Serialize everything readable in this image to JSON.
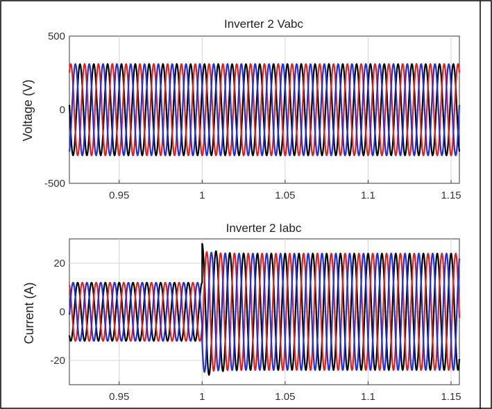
{
  "chart_data": [
    {
      "type": "line",
      "title": "Inverter 2 Vabc",
      "xlabel": "",
      "ylabel": "Voltage (V)",
      "xlim": [
        0.92,
        1.155
      ],
      "ylim": [
        -500,
        500
      ],
      "xticks": [
        0.95,
        1,
        1.05,
        1.1,
        1.15
      ],
      "xtick_labels": [
        "0.95",
        "1",
        "1.05",
        "1.1",
        "1.15"
      ],
      "yticks": [
        -500,
        0,
        500
      ],
      "ytick_labels": [
        "-500",
        "0",
        "500"
      ],
      "grid": true,
      "frequency_hz": 120,
      "series": [
        {
          "color": "#000000",
          "segments": [
            {
              "x_start": 0.92,
              "x_end": 1.155,
              "amplitude": 311,
              "phase_deg": 30
            }
          ]
        },
        {
          "color": "#e02020",
          "segments": [
            {
              "x_start": 0.92,
              "x_end": 1.155,
              "amplitude": 311,
              "phase_deg": -90
            }
          ]
        },
        {
          "color": "#1e2ee0",
          "segments": [
            {
              "x_start": 0.92,
              "x_end": 1.155,
              "amplitude": 311,
              "phase_deg": 150
            }
          ]
        }
      ]
    },
    {
      "type": "line",
      "title": "Inverter 2 Iabc",
      "xlabel": "",
      "ylabel": "Current (A)",
      "xlim": [
        0.92,
        1.155
      ],
      "ylim": [
        -30,
        30
      ],
      "xticks": [
        0.95,
        1,
        1.05,
        1.1,
        1.15
      ],
      "xtick_labels": [
        "0.95",
        "1",
        "1.05",
        "1.1",
        "1.15"
      ],
      "yticks": [
        -20,
        0,
        20
      ],
      "ytick_labels": [
        "-20",
        "0",
        "20"
      ],
      "grid": true,
      "frequency_hz": 120,
      "series": [
        {
          "color": "#000000",
          "segments": [
            {
              "x_start": 0.92,
              "x_end": 1.0,
              "amplitude": 12,
              "phase_deg": 90
            },
            {
              "x_start": 1.0,
              "x_end": 1.155,
              "amplitude": 24,
              "phase_deg": 90
            }
          ]
        },
        {
          "color": "#e02020",
          "segments": [
            {
              "x_start": 0.92,
              "x_end": 1.0,
              "amplitude": 12,
              "phase_deg": -30
            },
            {
              "x_start": 1.0,
              "x_end": 1.155,
              "amplitude": 24,
              "phase_deg": -30
            }
          ]
        },
        {
          "color": "#1e2ee0",
          "segments": [
            {
              "x_start": 0.92,
              "x_end": 1.0,
              "amplitude": 12,
              "phase_deg": 210
            },
            {
              "x_start": 1.0,
              "x_end": 1.155,
              "amplitude": 24,
              "phase_deg": 210
            }
          ]
        }
      ],
      "transient": {
        "x": 1.0,
        "peak_overshoot": 28
      }
    }
  ]
}
